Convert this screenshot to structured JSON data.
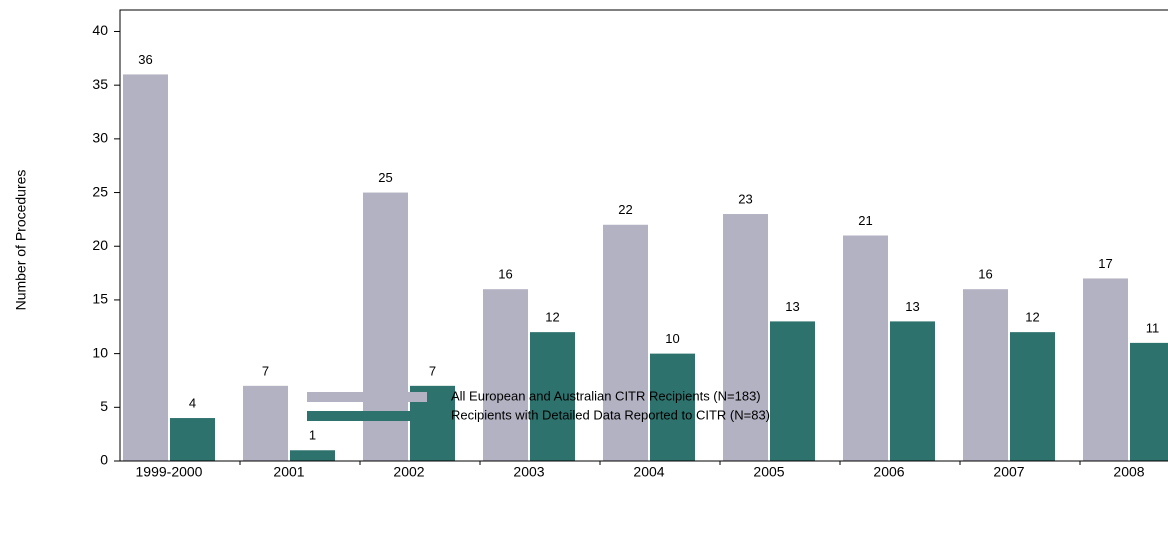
{
  "chart_data": {
    "type": "bar",
    "y_label": "Number of Procedures",
    "categories": [
      "1999-2000",
      "2001",
      "2002",
      "2003",
      "2004",
      "2005",
      "2006",
      "2007",
      "2008"
    ],
    "series": [
      {
        "name": "All European and Australian CITR Recipients (N=183)",
        "color": "#b3b2c2",
        "values": [
          36,
          7,
          25,
          16,
          22,
          23,
          21,
          16,
          17
        ]
      },
      {
        "name": "Recipients with Detailed Data Reported to CITR (N=83)",
        "color": "#2e726d",
        "values": [
          4,
          1,
          7,
          12,
          10,
          13,
          13,
          12,
          11
        ]
      }
    ],
    "ylim": [
      0,
      42
    ],
    "yticks": [
      0,
      5,
      10,
      15,
      20,
      25,
      30,
      35,
      40
    ]
  }
}
